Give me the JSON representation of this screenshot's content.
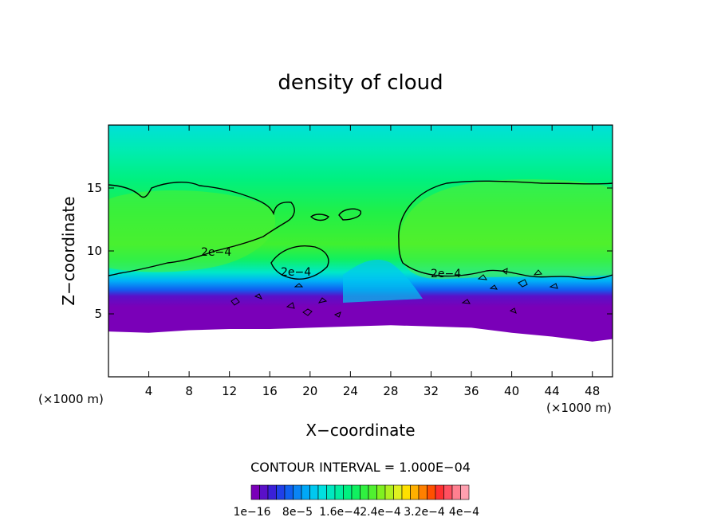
{
  "chart_data": {
    "type": "heatmap",
    "title": "density of cloud",
    "xlabel": "X−coordinate",
    "ylabel": "Z−coordinate",
    "x_unit_left": "(×1000 m)",
    "x_unit_right": "(×1000 m)",
    "xlim": [
      0,
      50
    ],
    "ylim": [
      0,
      20
    ],
    "x_ticks": [
      4,
      8,
      12,
      16,
      20,
      24,
      28,
      32,
      36,
      40,
      44,
      48
    ],
    "y_ticks": [
      5,
      10,
      15
    ],
    "contour_interval_text": "CONTOUR INTERVAL = 1.000E−04",
    "contour_labels": [
      "2e−4",
      "2e−4",
      "2e−4"
    ],
    "colorbar": {
      "tick_labels": [
        "1e−16",
        "8e−5",
        "1.6e−4",
        "2.4e−4",
        "3.2e−4",
        "4e−4"
      ],
      "tick_values": [
        1e-16,
        8e-05,
        0.00016,
        0.00024,
        0.00032,
        0.0004
      ],
      "colors": [
        "#7a00b8",
        "#5a10c8",
        "#3a20d8",
        "#2040e8",
        "#1060f0",
        "#0a85f5",
        "#00a8f8",
        "#00c8f0",
        "#00e0e0",
        "#00e8c0",
        "#00eea0",
        "#00f080",
        "#10f060",
        "#30f040",
        "#50f030",
        "#80f020",
        "#b0f020",
        "#e0f020",
        "#ffe000",
        "#ffb000",
        "#ff8000",
        "#ff5000",
        "#ff3030",
        "#ff5060",
        "#ff8090",
        "#ffa0b0"
      ]
    },
    "field_profile_description_levels": {
      "cloud_base_km_x": [
        0,
        4,
        8,
        12,
        16,
        20,
        24,
        28,
        32,
        36,
        40,
        44,
        48,
        50
      ],
      "cloud_base_km": [
        3.6,
        3.5,
        3.7,
        3.8,
        3.8,
        3.9,
        4.0,
        4.1,
        4.0,
        3.9,
        3.5,
        3.2,
        2.8,
        3.0
      ]
    }
  }
}
